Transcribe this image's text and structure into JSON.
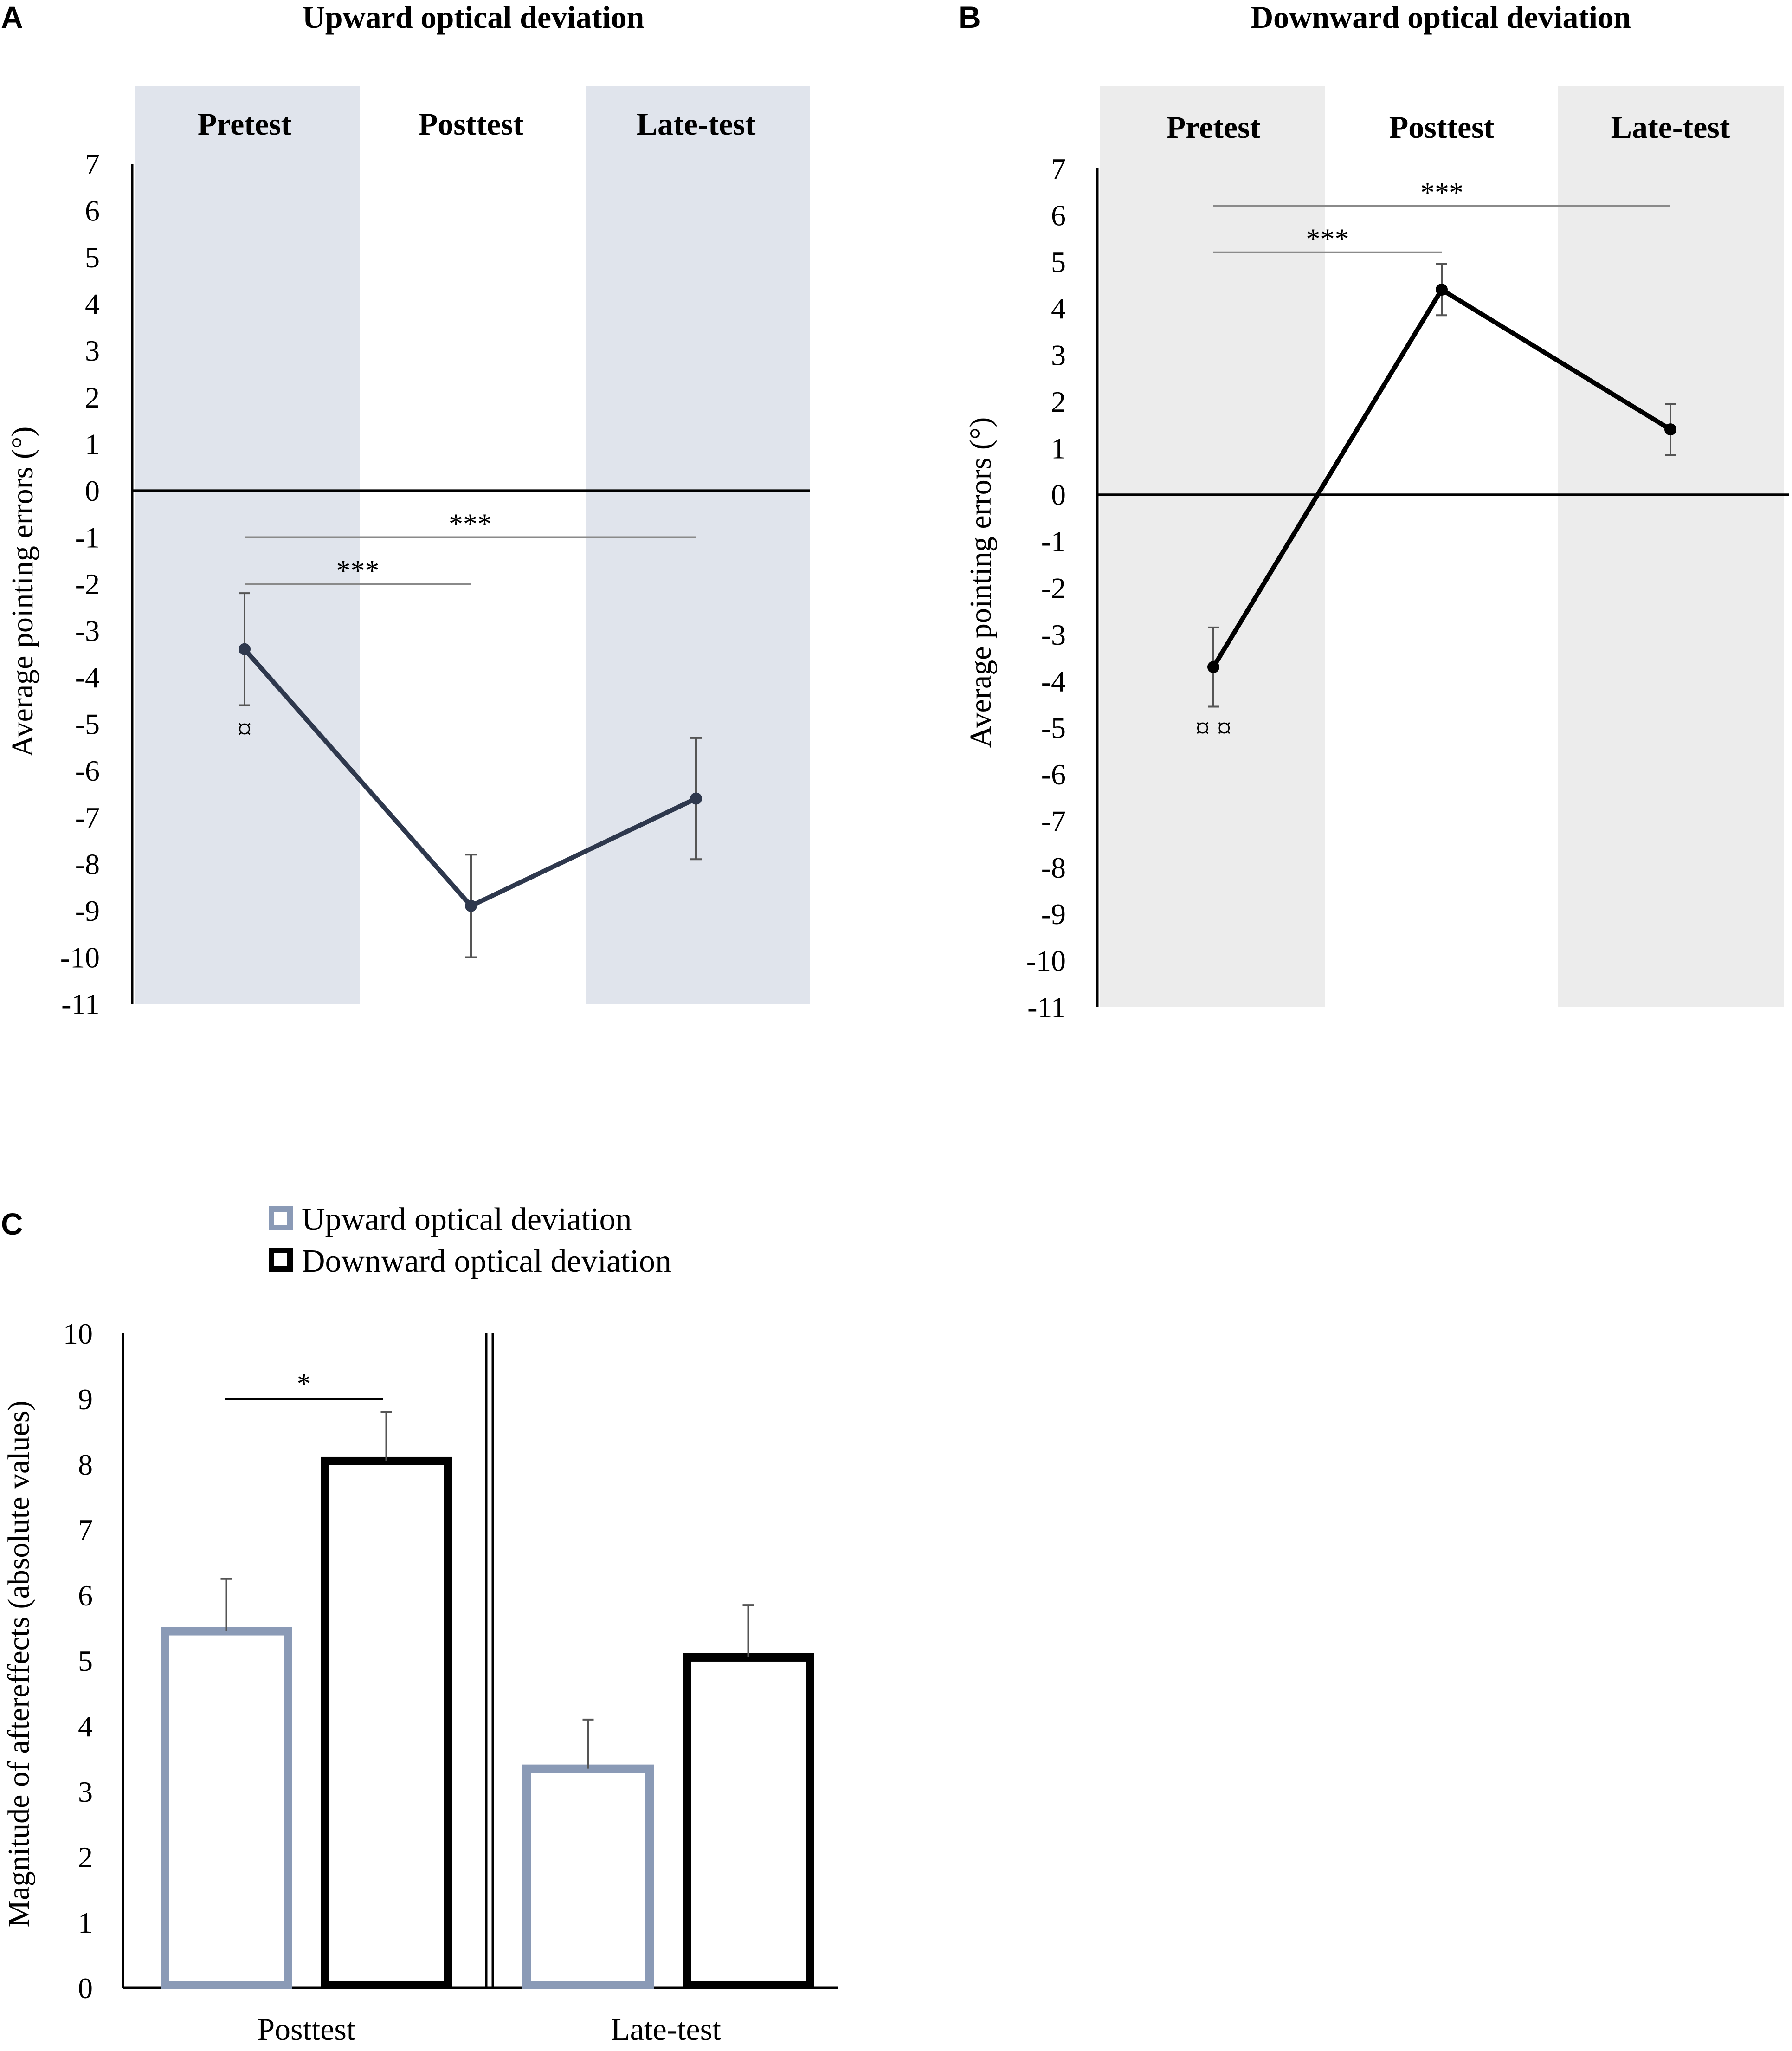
{
  "colors": {
    "upward": "#2e384d",
    "downward": "#000000",
    "shade_upward": "#e0e4ec",
    "shade_downward": "#ececec",
    "bar_upward": "#8a9ab6",
    "bar_downward": "#000000",
    "sig_line_upward": "#8a8a8a",
    "sig_line_downward": "#8a8a8a",
    "error_bar": "#555555"
  },
  "chart_data": [
    {
      "panel": "A",
      "type": "line",
      "title": "Upward optical deviation",
      "phases": [
        "Pretest",
        "Posttest",
        "Late-test"
      ],
      "ylabel": "Average pointing errors (°)",
      "ylim": [
        -11,
        7
      ],
      "yticks": [
        "7",
        "6",
        "5",
        "4",
        "3",
        "2",
        "1",
        "0",
        "-1",
        "-2",
        "-3",
        "-4",
        "-5",
        "-6",
        "-7",
        "-8",
        "-9",
        "-10",
        "-11"
      ],
      "series": [
        {
          "name": "Upward optical deviation",
          "values": [
            -3.4,
            -8.9,
            -6.6
          ],
          "errors": [
            1.2,
            1.1,
            1.3
          ]
        }
      ],
      "significance": [
        {
          "from": 0,
          "to": 1,
          "label": "***",
          "y": -2.0
        },
        {
          "from": 0,
          "to": 2,
          "label": "***",
          "y": -1.0
        }
      ],
      "marker": {
        "index": 0,
        "label": "¤",
        "y": -5.1
      }
    },
    {
      "panel": "B",
      "type": "line",
      "title": "Downward optical deviation",
      "phases": [
        "Pretest",
        "Posttest",
        "Late-test"
      ],
      "ylabel": "Average pointing errors (°)",
      "ylim": [
        -11,
        7
      ],
      "yticks": [
        "7",
        "6",
        "5",
        "4",
        "3",
        "2",
        "1",
        "0",
        "-1",
        "-2",
        "-3",
        "-4",
        "-5",
        "-6",
        "-7",
        "-8",
        "-9",
        "-10",
        "-11"
      ],
      "series": [
        {
          "name": "Downward optical deviation",
          "values": [
            -3.7,
            4.4,
            1.4
          ],
          "errors": [
            0.85,
            0.55,
            0.55
          ]
        }
      ],
      "significance": [
        {
          "from": 0,
          "to": 1,
          "label": "***",
          "y": 5.2
        },
        {
          "from": 0,
          "to": 2,
          "label": "***",
          "y": 6.2
        }
      ],
      "marker": {
        "index": 0,
        "label": "¤ ¤",
        "y": -5.0
      }
    },
    {
      "panel": "C",
      "type": "bar",
      "categories": [
        "Posttest",
        "Late-test"
      ],
      "ylabel": "Magnitude of aftereffects (absolute values)",
      "ylim": [
        0,
        10
      ],
      "yticks": [
        "0",
        "1",
        "2",
        "3",
        "4",
        "5",
        "6",
        "7",
        "8",
        "9",
        "10"
      ],
      "series": [
        {
          "name": "Upward optical deviation",
          "values": [
            5.45,
            3.35
          ],
          "errors": [
            0.8,
            0.75
          ]
        },
        {
          "name": "Downward optical deviation",
          "values": [
            8.05,
            5.05
          ],
          "errors": [
            0.75,
            0.8
          ]
        }
      ],
      "significance": [
        {
          "category": 0,
          "label": "*",
          "y": 9.0
        }
      ]
    }
  ]
}
